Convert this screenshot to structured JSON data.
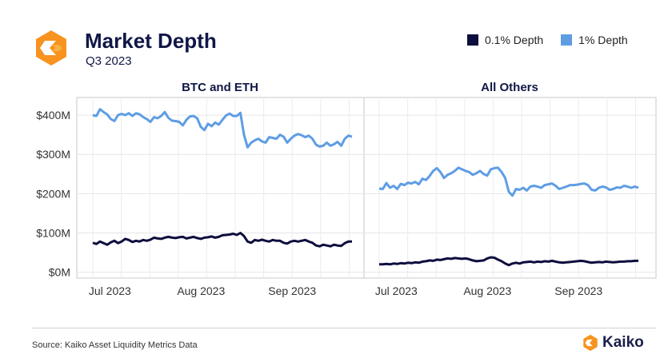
{
  "header": {
    "title": "Market Depth",
    "subtitle": "Q3 2023"
  },
  "legend": [
    {
      "label": "0.1% Depth",
      "color": "#0d0e3d"
    },
    {
      "label": "1% Depth",
      "color": "#5e9de4"
    }
  ],
  "footer": {
    "source": "Source: Kaiko Asset Liquidity Metrics Data",
    "brand": "Kaiko"
  },
  "colors": {
    "logo_orange": "#f7931e",
    "logo_light": "#fbb040"
  },
  "chart_data": [
    {
      "type": "line",
      "title": "BTC and ETH",
      "x_start": "2023-07-01",
      "x_end": "2023-09-30",
      "x_ticks": [
        "Jul 2023",
        "Aug 2023",
        "Sep 2023"
      ],
      "y_ticks": [
        "$0M",
        "$100M",
        "$200M",
        "$300M",
        "$400M"
      ],
      "ylim": [
        -15,
        445
      ],
      "series": [
        {
          "name": "1% Depth",
          "values": [
            400,
            398,
            415,
            408,
            402,
            390,
            385,
            400,
            403,
            400,
            405,
            398,
            405,
            402,
            395,
            390,
            383,
            395,
            392,
            398,
            408,
            393,
            386,
            385,
            383,
            374,
            388,
            397,
            398,
            392,
            370,
            362,
            378,
            372,
            381,
            376,
            388,
            399,
            404,
            398,
            398,
            406,
            350,
            318,
            330,
            336,
            340,
            333,
            330,
            344,
            342,
            340,
            350,
            345,
            330,
            340,
            348,
            352,
            349,
            344,
            348,
            340,
            325,
            320,
            322,
            330,
            322,
            326,
            332,
            322,
            340,
            348,
            345
          ]
        },
        {
          "name": "0.1% Depth",
          "values": [
            75,
            72,
            78,
            74,
            70,
            76,
            80,
            74,
            78,
            85,
            82,
            77,
            80,
            78,
            82,
            80,
            83,
            88,
            86,
            85,
            88,
            90,
            88,
            87,
            89,
            90,
            86,
            88,
            90,
            87,
            85,
            88,
            89,
            91,
            88,
            90,
            94,
            95,
            96,
            98,
            95,
            100,
            92,
            78,
            75,
            82,
            80,
            83,
            80,
            78,
            82,
            80,
            80,
            75,
            73,
            78,
            80,
            78,
            80,
            82,
            78,
            75,
            68,
            66,
            70,
            68,
            66,
            70,
            68,
            67,
            74,
            78,
            78
          ]
        }
      ]
    },
    {
      "type": "line",
      "title": "All Others",
      "x_start": "2023-07-01",
      "x_end": "2023-09-30",
      "x_ticks": [
        "Jul 2023",
        "Aug 2023",
        "Sep 2023"
      ],
      "ylim": [
        -15,
        445
      ],
      "series": [
        {
          "name": "1% Depth",
          "values": [
            213,
            212,
            227,
            215,
            220,
            212,
            225,
            222,
            228,
            226,
            230,
            224,
            238,
            235,
            245,
            258,
            265,
            255,
            240,
            248,
            252,
            258,
            266,
            262,
            258,
            255,
            248,
            252,
            258,
            250,
            246,
            262,
            265,
            266,
            255,
            240,
            205,
            195,
            212,
            210,
            215,
            208,
            218,
            220,
            218,
            215,
            222,
            224,
            226,
            220,
            212,
            215,
            218,
            222,
            222,
            223,
            225,
            226,
            222,
            210,
            208,
            215,
            218,
            216,
            210,
            212,
            216,
            215,
            220,
            218,
            215,
            218,
            215
          ]
        },
        {
          "name": "0.1% Depth",
          "values": [
            20,
            20,
            21,
            20,
            22,
            21,
            23,
            22,
            24,
            23,
            25,
            24,
            27,
            28,
            30,
            29,
            32,
            31,
            33,
            35,
            34,
            36,
            35,
            34,
            35,
            33,
            30,
            28,
            29,
            30,
            35,
            38,
            37,
            32,
            28,
            22,
            18,
            22,
            24,
            22,
            25,
            26,
            27,
            25,
            27,
            26,
            28,
            27,
            29,
            27,
            25,
            24,
            25,
            26,
            27,
            28,
            29,
            28,
            26,
            24,
            25,
            26,
            25,
            27,
            26,
            25,
            26,
            27,
            27,
            28,
            28,
            29,
            29
          ]
        }
      ]
    }
  ]
}
